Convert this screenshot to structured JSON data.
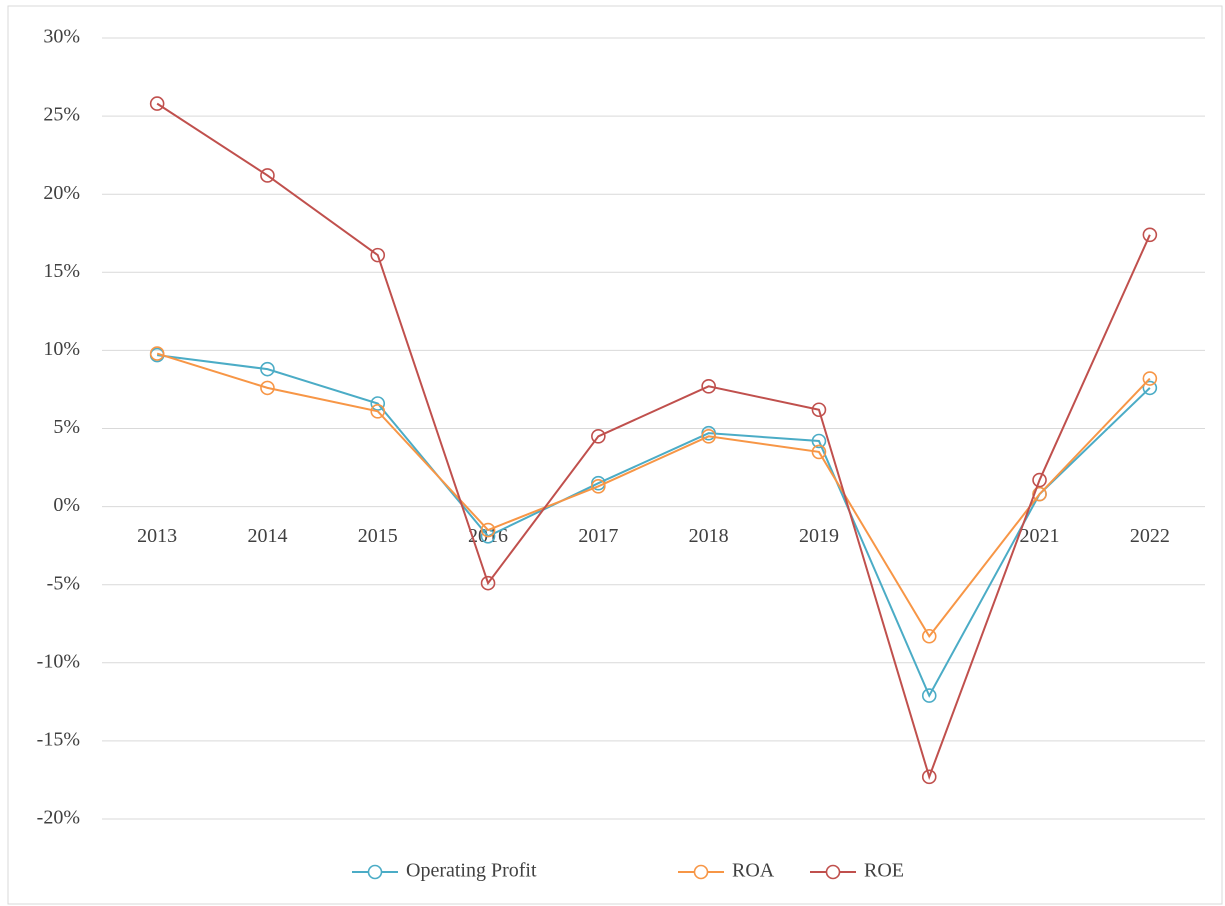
{
  "chart_data": {
    "type": "line",
    "categories": [
      "2013",
      "2014",
      "2015",
      "2016",
      "2017",
      "2018",
      "2019",
      null,
      "2021",
      "2022"
    ],
    "series": [
      {
        "name": "Operating Profit",
        "color": "#4bacc6",
        "values": [
          9.7,
          8.8,
          6.6,
          -1.9,
          1.5,
          4.7,
          4.2,
          -12.1,
          0.8,
          7.6
        ]
      },
      {
        "name": "ROA",
        "color": "#f79646",
        "values": [
          9.8,
          7.6,
          6.1,
          -1.5,
          1.3,
          4.5,
          3.5,
          -8.3,
          0.8,
          8.2
        ]
      },
      {
        "name": "ROE",
        "color": "#c0504d",
        "values": [
          25.8,
          21.2,
          16.1,
          -4.9,
          4.5,
          7.7,
          6.2,
          -17.3,
          1.7,
          17.4
        ]
      }
    ],
    "ylim": [
      -20,
      30
    ],
    "yticks": [
      {
        "value": -20,
        "label": "-20%"
      },
      {
        "value": -15,
        "label": "-15%"
      },
      {
        "value": -10,
        "label": "-10%"
      },
      {
        "value": -5,
        "label": "-5%"
      },
      {
        "value": 0,
        "label": "0%"
      },
      {
        "value": 5,
        "label": "5%"
      },
      {
        "value": 10,
        "label": "10%"
      },
      {
        "value": 15,
        "label": "15%"
      },
      {
        "value": 20,
        "label": "20%"
      },
      {
        "value": 25,
        "label": "25%"
      },
      {
        "value": 30,
        "label": "30%"
      }
    ],
    "grid": true,
    "legend": "bottom"
  }
}
